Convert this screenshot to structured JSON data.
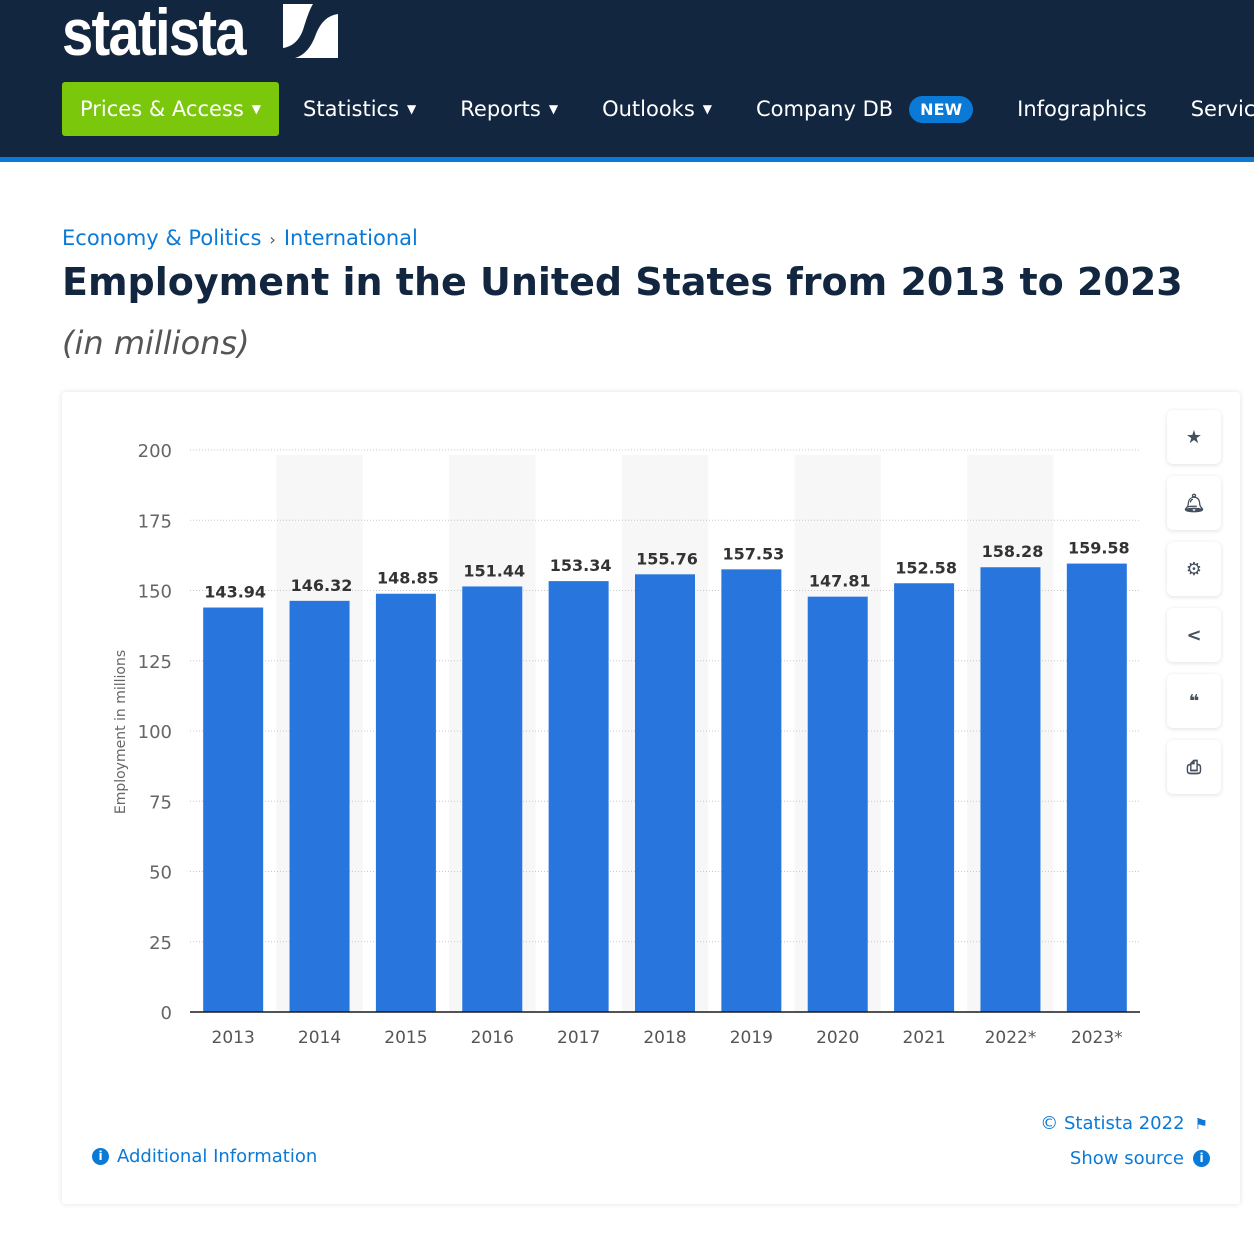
{
  "header": {
    "logo": "statista",
    "nav": [
      {
        "label": "Prices & Access",
        "caret": true
      },
      {
        "label": "Statistics",
        "caret": true
      },
      {
        "label": "Reports",
        "caret": true
      },
      {
        "label": "Outlooks",
        "caret": true
      },
      {
        "label": "Company DB",
        "badge": "NEW"
      },
      {
        "label": "Infographics"
      },
      {
        "label": "Service"
      }
    ],
    "accent": "#7ac70c",
    "background": "#13263f"
  },
  "breadcrumb": [
    "Economy & Politics",
    "International"
  ],
  "title": "Employment in the United States from 2013 to 2023",
  "subtitle": "(in millions)",
  "actions": [
    "star-icon",
    "bell-icon",
    "gear-icon",
    "share-icon",
    "quote-icon",
    "print-icon"
  ],
  "footer": {
    "copyright": "© Statista 2022",
    "show_source": "Show source",
    "additional_info": "Additional Information"
  },
  "chart_data": {
    "type": "bar",
    "categories": [
      "2013",
      "2014",
      "2015",
      "2016",
      "2017",
      "2018",
      "2019",
      "2020",
      "2021",
      "2022*",
      "2023*"
    ],
    "values": [
      143.94,
      146.32,
      148.85,
      151.44,
      153.34,
      155.76,
      157.53,
      147.81,
      152.58,
      158.28,
      159.58
    ],
    "value_labels": [
      "143.94",
      "146.32",
      "148.85",
      "151.44",
      "153.34",
      "155.76",
      "157.53",
      "147.81",
      "152.58",
      "158.28",
      "159.58"
    ],
    "ylabel": "Employment in millions",
    "ylim": [
      0,
      200
    ],
    "yticks": [
      "0",
      "25",
      "50",
      "75",
      "100",
      "125",
      "150",
      "175",
      "200"
    ],
    "grid": true,
    "bar_color": "#2876dd"
  }
}
